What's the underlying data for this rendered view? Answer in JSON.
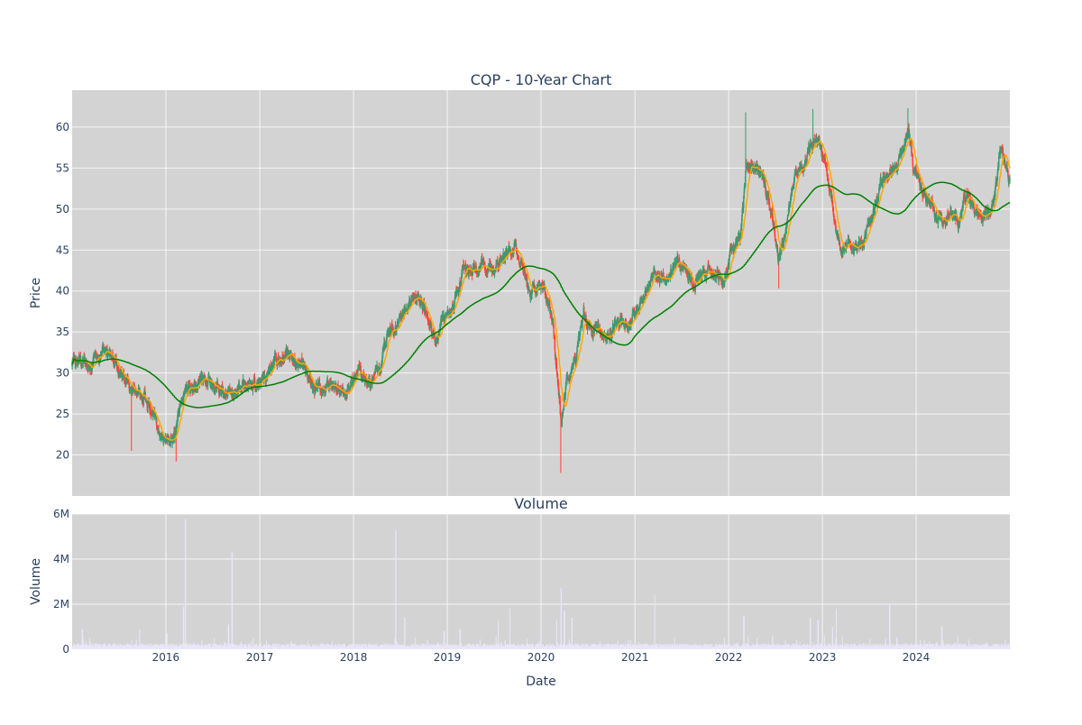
{
  "chart_data": [
    {
      "type": "candlestick",
      "title": "CQP - 10-Year Chart",
      "xlabel": "",
      "ylabel": "Price",
      "x_range": [
        "2015-01-01",
        "2024-12-31"
      ],
      "ylim": [
        15,
        64.5
      ],
      "yticks": [
        20,
        25,
        30,
        35,
        40,
        45,
        50,
        55,
        60
      ],
      "xtick_labels": [
        "2016",
        "2017",
        "2018",
        "2019",
        "2020",
        "2021",
        "2022",
        "2023",
        "2024"
      ],
      "grid": true,
      "legend": "none",
      "colors": {
        "up": "#3d9970",
        "down": "#ff4136",
        "short_ma": "#ffa500",
        "long_ma": "#008000",
        "background": "#d3d3d3"
      },
      "close_anchors": [
        [
          "2015-01-05",
          31.5
        ],
        [
          "2015-02-15",
          31.0
        ],
        [
          "2015-04-01",
          31.5
        ],
        [
          "2015-05-01",
          32.6
        ],
        [
          "2015-06-15",
          31.0
        ],
        [
          "2015-07-15",
          29.0
        ],
        [
          "2015-09-01",
          28.0
        ],
        [
          "2015-10-15",
          27.0
        ],
        [
          "2015-11-15",
          25.0
        ],
        [
          "2015-12-15",
          22.5
        ],
        [
          "2016-01-25",
          22.0
        ],
        [
          "2016-02-20",
          25.0
        ],
        [
          "2016-03-15",
          27.5
        ],
        [
          "2016-04-15",
          28.5
        ],
        [
          "2016-05-15",
          29.5
        ],
        [
          "2016-06-15",
          29.0
        ],
        [
          "2016-07-15",
          28.0
        ],
        [
          "2016-08-15",
          27.5
        ],
        [
          "2016-09-15",
          28.0
        ],
        [
          "2016-10-15",
          28.5
        ],
        [
          "2016-11-15",
          28.0
        ],
        [
          "2016-12-15",
          28.8
        ],
        [
          "2017-01-20",
          29.5
        ],
        [
          "2017-03-01",
          31.8
        ],
        [
          "2017-04-15",
          32.2
        ],
        [
          "2017-05-15",
          32.0
        ],
        [
          "2017-06-15",
          31.5
        ],
        [
          "2017-07-15",
          29.5
        ],
        [
          "2017-08-15",
          28.0
        ],
        [
          "2017-09-15",
          28.2
        ],
        [
          "2017-10-15",
          28.0
        ],
        [
          "2017-11-15",
          27.8
        ],
        [
          "2017-12-15",
          28.0
        ],
        [
          "2018-01-15",
          30.0
        ],
        [
          "2018-02-15",
          29.5
        ],
        [
          "2018-03-15",
          29.0
        ],
        [
          "2018-04-15",
          30.5
        ],
        [
          "2018-05-15",
          35.0
        ],
        [
          "2018-06-15",
          36.0
        ],
        [
          "2018-07-15",
          37.5
        ],
        [
          "2018-08-15",
          38.5
        ],
        [
          "2018-09-15",
          39.5
        ],
        [
          "2018-10-15",
          37.0
        ],
        [
          "2018-11-15",
          34.0
        ],
        [
          "2018-12-15",
          36.5
        ],
        [
          "2019-01-15",
          37.5
        ],
        [
          "2019-02-15",
          40.0
        ],
        [
          "2019-03-01",
          43.0
        ],
        [
          "2019-04-01",
          42.5
        ],
        [
          "2019-05-15",
          43.0
        ],
        [
          "2019-07-01",
          43.0
        ],
        [
          "2019-08-15",
          44.0
        ],
        [
          "2019-09-20",
          45.5
        ],
        [
          "2019-10-20",
          43.5
        ],
        [
          "2019-11-15",
          40.0
        ],
        [
          "2019-12-15",
          40.5
        ],
        [
          "2020-01-15",
          40.5
        ],
        [
          "2020-02-15",
          36.0
        ],
        [
          "2020-03-20",
          24.0
        ],
        [
          "2020-04-10",
          29.0
        ],
        [
          "2020-05-15",
          31.5
        ],
        [
          "2020-06-15",
          37.0
        ],
        [
          "2020-07-15",
          35.0
        ],
        [
          "2020-08-15",
          35.5
        ],
        [
          "2020-09-15",
          34.0
        ],
        [
          "2020-10-15",
          36.0
        ],
        [
          "2020-11-15",
          36.5
        ],
        [
          "2020-12-15",
          36.0
        ],
        [
          "2021-01-15",
          38.5
        ],
        [
          "2021-02-15",
          40.5
        ],
        [
          "2021-03-15",
          42.5
        ],
        [
          "2021-04-15",
          41.5
        ],
        [
          "2021-05-15",
          42.0
        ],
        [
          "2021-06-15",
          44.0
        ],
        [
          "2021-07-15",
          42.5
        ],
        [
          "2021-08-15",
          41.0
        ],
        [
          "2021-09-15",
          41.5
        ],
        [
          "2021-10-15",
          43.0
        ],
        [
          "2021-11-15",
          42.0
        ],
        [
          "2021-12-15",
          41.0
        ],
        [
          "2022-01-15",
          45.0
        ],
        [
          "2022-02-15",
          47.0
        ],
        [
          "2022-03-10",
          55.0
        ],
        [
          "2022-04-15",
          55.5
        ],
        [
          "2022-05-15",
          54.0
        ],
        [
          "2022-06-15",
          50.0
        ],
        [
          "2022-07-15",
          44.0
        ],
        [
          "2022-08-15",
          48.0
        ],
        [
          "2022-09-15",
          54.0
        ],
        [
          "2022-10-15",
          55.0
        ],
        [
          "2022-11-15",
          57.0
        ],
        [
          "2022-12-15",
          58.0
        ],
        [
          "2023-01-15",
          55.0
        ],
        [
          "2023-02-15",
          49.0
        ],
        [
          "2023-03-15",
          45.0
        ],
        [
          "2023-04-15",
          46.0
        ],
        [
          "2023-05-15",
          45.5
        ],
        [
          "2023-06-15",
          46.0
        ],
        [
          "2023-07-15",
          50.0
        ],
        [
          "2023-08-15",
          52.5
        ],
        [
          "2023-09-15",
          54.0
        ],
        [
          "2023-10-15",
          55.5
        ],
        [
          "2023-11-15",
          58.5
        ],
        [
          "2023-12-01",
          60.0
        ],
        [
          "2023-12-20",
          55.0
        ],
        [
          "2024-01-15",
          53.0
        ],
        [
          "2024-02-15",
          51.0
        ],
        [
          "2024-03-15",
          49.0
        ],
        [
          "2024-04-15",
          48.5
        ],
        [
          "2024-05-15",
          49.0
        ],
        [
          "2024-06-15",
          48.5
        ],
        [
          "2024-07-15",
          52.0
        ],
        [
          "2024-08-15",
          49.5
        ],
        [
          "2024-09-15",
          48.5
        ],
        [
          "2024-10-15",
          49.5
        ],
        [
          "2024-11-10",
          53.0
        ],
        [
          "2024-11-25",
          58.0
        ],
        [
          "2024-12-31",
          53.0
        ]
      ],
      "wick_extremes": [
        [
          "2015-08-20",
          20.5
        ],
        [
          "2016-02-10",
          19.2
        ],
        [
          "2020-03-18",
          17.8
        ],
        [
          "2022-03-08",
          61.8
        ],
        [
          "2022-07-15",
          40.3
        ],
        [
          "2022-11-25",
          62.2
        ],
        [
          "2023-11-30",
          62.3
        ]
      ]
    },
    {
      "type": "bar",
      "title": "Volume",
      "xlabel": "Date",
      "ylabel": "Volume",
      "x_range": [
        "2015-01-01",
        "2024-12-31"
      ],
      "ylim": [
        0,
        6000000
      ],
      "yticks": [
        0,
        2000000,
        4000000,
        6000000
      ],
      "ytick_labels": [
        "0",
        "2M",
        "4M",
        "6M"
      ],
      "xtick_labels": [
        "2016",
        "2017",
        "2018",
        "2019",
        "2020",
        "2021",
        "2022",
        "2023",
        "2024"
      ],
      "grid": true,
      "colors": {
        "bars": "#e8e6f8",
        "background": "#d3d3d3"
      },
      "baseline_volume": 200000,
      "volume_spikes": [
        [
          "2015-02-10",
          900000
        ],
        [
          "2015-09-20",
          900000
        ],
        [
          "2016-01-05",
          700000
        ],
        [
          "2016-03-10",
          1900000
        ],
        [
          "2016-03-18",
          5800000
        ],
        [
          "2016-09-15",
          4300000
        ],
        [
          "2016-09-01",
          1100000
        ],
        [
          "2018-06-15",
          5300000
        ],
        [
          "2018-07-20",
          1400000
        ],
        [
          "2018-12-20",
          800000
        ],
        [
          "2019-02-20",
          900000
        ],
        [
          "2019-07-20",
          1300000
        ],
        [
          "2019-09-01",
          1800000
        ],
        [
          "2020-01-01",
          1000000
        ],
        [
          "2020-03-01",
          1300000
        ],
        [
          "2020-03-20",
          2700000
        ],
        [
          "2020-04-01",
          1700000
        ],
        [
          "2020-05-01",
          1400000
        ],
        [
          "2021-03-20",
          2400000
        ],
        [
          "2022-03-01",
          1500000
        ],
        [
          "2022-06-20",
          600000
        ],
        [
          "2022-11-15",
          1400000
        ],
        [
          "2022-12-15",
          1300000
        ],
        [
          "2023-02-10",
          1000000
        ],
        [
          "2023-02-25",
          1800000
        ],
        [
          "2023-09-20",
          2000000
        ],
        [
          "2024-04-10",
          1000000
        ],
        [
          "2024-10-01",
          300000
        ]
      ]
    }
  ]
}
